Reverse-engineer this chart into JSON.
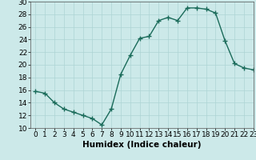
{
  "x": [
    0,
    1,
    2,
    3,
    4,
    5,
    6,
    7,
    8,
    9,
    10,
    11,
    12,
    13,
    14,
    15,
    16,
    17,
    18,
    19,
    20,
    21,
    22,
    23
  ],
  "y": [
    15.8,
    15.5,
    14.0,
    13.0,
    12.5,
    12.0,
    11.5,
    10.5,
    13.0,
    18.5,
    21.5,
    24.2,
    24.5,
    27.0,
    27.5,
    27.0,
    29.0,
    29.0,
    28.8,
    28.2,
    23.8,
    20.2,
    19.5,
    19.2
  ],
  "line_color": "#1a6b5a",
  "marker": "+",
  "marker_size": 4,
  "marker_linewidth": 1.0,
  "background_color": "#cce9e9",
  "grid_color": "#add4d4",
  "xlabel": "Humidex (Indice chaleur)",
  "ylim": [
    10,
    30
  ],
  "xlim": [
    -0.5,
    23
  ],
  "yticks": [
    10,
    12,
    14,
    16,
    18,
    20,
    22,
    24,
    26,
    28,
    30
  ],
  "xticks": [
    0,
    1,
    2,
    3,
    4,
    5,
    6,
    7,
    8,
    9,
    10,
    11,
    12,
    13,
    14,
    15,
    16,
    17,
    18,
    19,
    20,
    21,
    22,
    23
  ],
  "xlabel_fontsize": 7.5,
  "tick_fontsize": 6.5,
  "linewidth": 1.0
}
